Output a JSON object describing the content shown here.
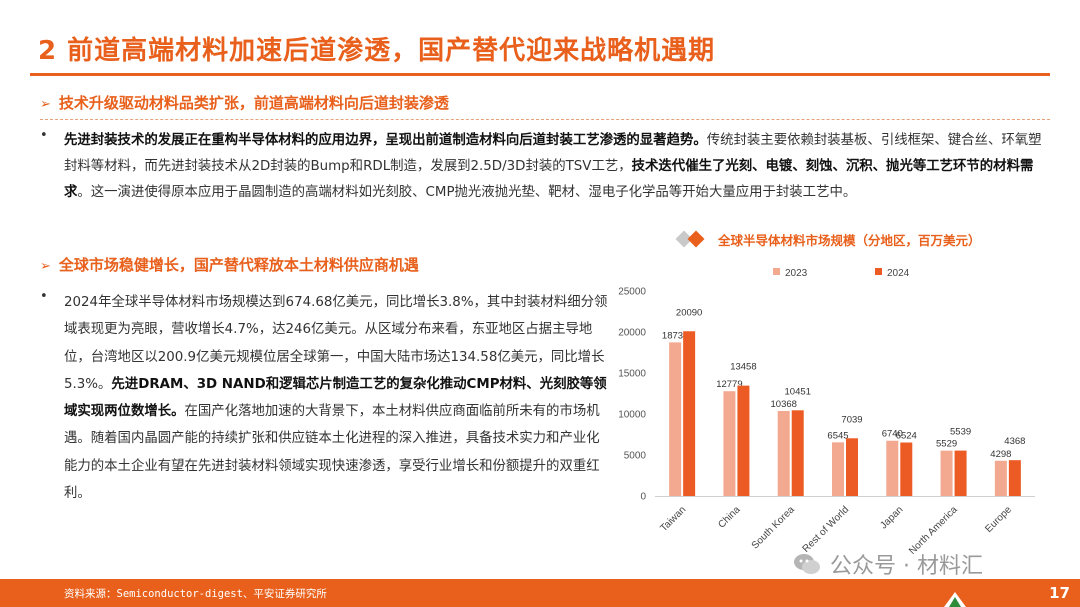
{
  "page": {
    "title": "2 前道高端材料加速后道渗透，国产替代迎来战略机遇期",
    "page_number": "17"
  },
  "section1": {
    "heading": "技术升级驱动材料品类扩张，前道高端材料向后道封装渗透",
    "bullet": "•",
    "segments": [
      {
        "text": "先进封装技术的发展正在重构半导体材料的应用边界，呈现出前道制造材料向后道封装工艺渗透的显著趋势。",
        "bold": true
      },
      {
        "text": "传统封装主要依赖封装基板、引线框架、键合丝、环氧塑封料等材料，而先进封装技术从2D封装的Bump和RDL制造，发展到2.5D/3D封装的TSV工艺，",
        "bold": false
      },
      {
        "text": "技术迭代催生了光刻、电镀、刻蚀、沉积、抛光等工艺环节的材料需求",
        "bold": true
      },
      {
        "text": "。这一演进使得原本应用于晶圆制造的高端材料如光刻胶、CMP抛光液抛光垫、靶材、湿电子化学品等开始大量应用于封装工艺中。",
        "bold": false
      }
    ]
  },
  "section2": {
    "heading": "全球市场稳健增长，国产替代释放本土材料供应商机遇",
    "bullet": "•",
    "segments": [
      {
        "text": "2024年全球半导体材料市场规模达到674.68亿美元，同比增长3.8%，其中封装材料细分领域表现更为亮眼，营收增长4.7%，达246亿美元。从区域分布来看，东亚地区占据主导地位，台湾地区以200.9亿美元规模位居全球第一，中国大陆市场达134.58亿美元，同比增长5.3%。",
        "bold": false
      },
      {
        "text": "先进DRAM、3D NAND和逻辑芯片制造工艺的复杂化推动CMP材料、光刻胶等领域实现两位数增长。",
        "bold": true
      },
      {
        "text": "在国产化落地加速的大背景下，本土材料供应商面临前所未有的市场机遇。随着国内晶圆产能的持续扩张和供应链本土化进程的深入推进，具备技术实力和产业化能力的本土企业有望在先进封装材料领域实现快速渗透，享受行业增长和份额提升的双重红利。",
        "bold": false
      }
    ]
  },
  "chart_data": {
    "type": "bar",
    "title": "全球半导体材料市场规模（分地区，百万美元）",
    "categories": [
      "Taiwan",
      "China",
      "South Korea",
      "Rest of World",
      "Japan",
      "North America",
      "Europe"
    ],
    "series": [
      {
        "name": "2023",
        "values": [
          18734,
          12779,
          10368,
          6545,
          6740,
          5529,
          4298
        ],
        "color": "#f3a98f"
      },
      {
        "name": "2024",
        "values": [
          20090,
          13458,
          10451,
          7039,
          6524,
          5539,
          4368
        ],
        "color": "#ec5b24"
      }
    ],
    "y_ticks": [
      "0",
      "5000",
      "10000",
      "15000",
      "20000",
      "25000"
    ],
    "ylim": [
      0,
      25000
    ],
    "legend_position": "top",
    "grid": false
  },
  "footer": {
    "source": "资料来源：Semiconductor-digest、平安证券研究所"
  },
  "watermark": {
    "text": "公众号 · 材料汇"
  },
  "colors": {
    "accent": "#e8601c",
    "series_2023": "#f3a98f",
    "series_2024": "#ec5b24"
  }
}
